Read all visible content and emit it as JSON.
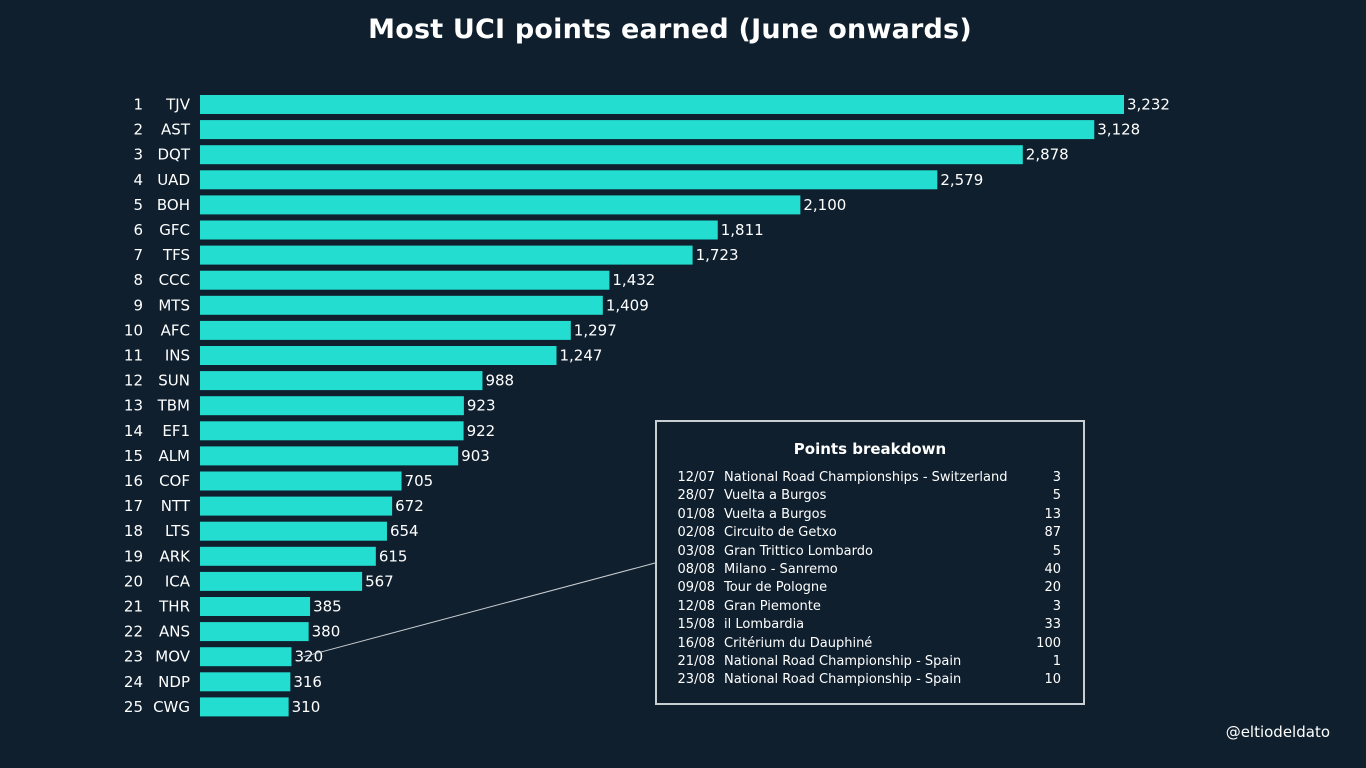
{
  "title": "Most UCI points earned (June onwards)",
  "colors": {
    "background": "#0f1f2e",
    "bar": "#22ddd0",
    "text": "#ffffff",
    "connector": "#c9ced3"
  },
  "chart_data": {
    "type": "bar",
    "orientation": "horizontal",
    "title": "Most UCI points earned (June onwards)",
    "xlabel": "",
    "ylabel": "",
    "xlim": [
      0,
      3232
    ],
    "grid": false,
    "categories": [
      "TJV",
      "AST",
      "DQT",
      "UAD",
      "BOH",
      "GFC",
      "TFS",
      "CCC",
      "MTS",
      "AFC",
      "INS",
      "SUN",
      "TBM",
      "EF1",
      "ALM",
      "COF",
      "NTT",
      "LTS",
      "ARK",
      "ICA",
      "THR",
      "ANS",
      "MOV",
      "NDP",
      "CWG"
    ],
    "ranks": [
      "1",
      "2",
      "3",
      "4",
      "5",
      "6",
      "7",
      "8",
      "9",
      "10",
      "11",
      "12",
      "13",
      "14",
      "15",
      "16",
      "17",
      "18",
      "19",
      "20",
      "21",
      "22",
      "23",
      "24",
      "25"
    ],
    "values": [
      3232,
      3128,
      2878,
      2579,
      2100,
      1811,
      1723,
      1432,
      1409,
      1297,
      1247,
      988,
      923,
      922,
      903,
      705,
      672,
      654,
      615,
      567,
      385,
      380,
      320,
      316,
      310
    ],
    "value_labels": [
      "3,232",
      "3,128",
      "2,878",
      "2,579",
      "2,100",
      "1,811",
      "1,723",
      "1,432",
      "1,409",
      "1,297",
      "1,247",
      "988",
      "923",
      "922",
      "903",
      "705",
      "672",
      "654",
      "615",
      "567",
      "385",
      "380",
      "320",
      "316",
      "310"
    ],
    "annotation": {
      "target": "MOV",
      "title": "Points breakdown",
      "rows": [
        {
          "date": "12/07",
          "race": "National Road Championships - Switzerland",
          "points": "3"
        },
        {
          "date": "28/07",
          "race": "Vuelta a Burgos",
          "points": "5"
        },
        {
          "date": "01/08",
          "race": "Vuelta a Burgos",
          "points": "13"
        },
        {
          "date": "02/08",
          "race": "Circuito de Getxo",
          "points": "87"
        },
        {
          "date": "03/08",
          "race": "Gran Trittico Lombardo",
          "points": "5"
        },
        {
          "date": "08/08",
          "race": "Milano - Sanremo",
          "points": "40"
        },
        {
          "date": "09/08",
          "race": "Tour de Pologne",
          "points": "20"
        },
        {
          "date": "12/08",
          "race": "Gran Piemonte",
          "points": "3"
        },
        {
          "date": "15/08",
          "race": "il Lombardia",
          "points": "33"
        },
        {
          "date": "16/08",
          "race": "Critérium du Dauphiné",
          "points": "100"
        },
        {
          "date": "21/08",
          "race": "National Road Championship - Spain",
          "points": "1"
        },
        {
          "date": "23/08",
          "race": "National Road Championship - Spain",
          "points": "10"
        }
      ]
    }
  },
  "credit": "@eltiodeldato"
}
